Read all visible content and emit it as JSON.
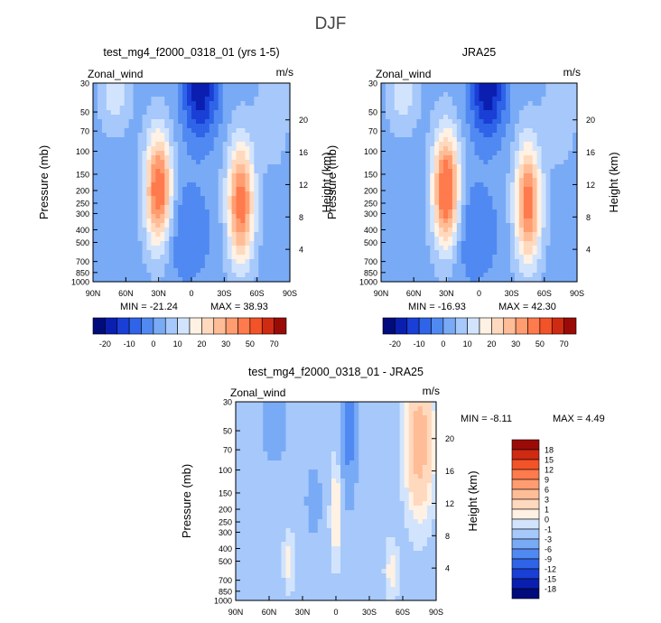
{
  "figure_title": "DJF",
  "chart_data": [
    {
      "type": "heatmap",
      "title": "test_mg4_f2000_0318_01 (yrs 1-5)",
      "variable_label": "Zonal_wind",
      "units": "m/s",
      "ylabel": "Pressure (mb)",
      "y2label": "Height (km)",
      "xticks": [
        "90N",
        "60N",
        "30N",
        "0",
        "30S",
        "60S",
        "90S"
      ],
      "yticks": [
        "30",
        "50",
        "70",
        "100",
        "150",
        "200",
        "250",
        "300",
        "400",
        "500",
        "700",
        "850",
        "1000"
      ],
      "y2ticks": [
        "20",
        "16",
        "12",
        "8",
        "4"
      ],
      "min_label": "MIN = -21.24",
      "max_label": "MAX = 38.93",
      "colorbar": {
        "levels": [
          "-20",
          "-10",
          "0",
          "10",
          "20",
          "30",
          "50",
          "70"
        ],
        "colors": [
          "#000b7c",
          "#0a1fb0",
          "#1a3fd6",
          "#2f64e8",
          "#5089f1",
          "#79aaf6",
          "#a6c8fa",
          "#d2e4fd",
          "#fff1e3",
          "#ffd9be",
          "#ffbd97",
          "#ff9c70",
          "#ff7a4c",
          "#f35328",
          "#cf2a12",
          "#9a0b08"
        ]
      },
      "fields": {
        "jet_nh": {
          "lat": 30,
          "p": 200,
          "max": 38.9
        },
        "jet_sh": {
          "lat": -45,
          "p": 250,
          "max": 36
        },
        "min_value": -21.24,
        "max_value": 38.93
      }
    },
    {
      "type": "heatmap",
      "title": "JRA25",
      "variable_label": "Zonal_wind",
      "units": "m/s",
      "ylabel": "Pressure (mb)",
      "y2label": "Height (km)",
      "xticks": [
        "90N",
        "60N",
        "30N",
        "0",
        "30S",
        "60S",
        "90S"
      ],
      "yticks": [
        "30",
        "50",
        "70",
        "100",
        "150",
        "200",
        "250",
        "300",
        "400",
        "500",
        "700",
        "850",
        "1000"
      ],
      "y2ticks": [
        "20",
        "16",
        "12",
        "8",
        "4"
      ],
      "min_label": "MIN = -16.93",
      "max_label": "MAX = 42.30",
      "colorbar": {
        "levels": [
          "-20",
          "-10",
          "0",
          "10",
          "20",
          "30",
          "50",
          "70"
        ],
        "colors": [
          "#000b7c",
          "#0a1fb0",
          "#1a3fd6",
          "#2f64e8",
          "#5089f1",
          "#79aaf6",
          "#a6c8fa",
          "#d2e4fd",
          "#fff1e3",
          "#ffd9be",
          "#ffbd97",
          "#ff9c70",
          "#ff7a4c",
          "#f35328",
          "#cf2a12",
          "#9a0b08"
        ]
      },
      "fields": {
        "jet_nh": {
          "lat": 30,
          "p": 200,
          "max": 42.3
        },
        "jet_sh": {
          "lat": -45,
          "p": 250,
          "max": 35
        },
        "min_value": -16.93,
        "max_value": 42.3
      }
    },
    {
      "type": "heatmap",
      "title": "test_mg4_f2000_0318_01 - JRA25",
      "variable_label": "Zonal_wind",
      "units": "m/s",
      "ylabel": "Pressure (mb)",
      "y2label": "Height (km)",
      "xticks": [
        "90N",
        "60N",
        "30N",
        "0",
        "30S",
        "60S",
        "90S"
      ],
      "yticks": [
        "30",
        "50",
        "70",
        "100",
        "150",
        "200",
        "250",
        "300",
        "400",
        "500",
        "700",
        "850",
        "1000"
      ],
      "y2ticks": [
        "20",
        "16",
        "12",
        "8",
        "4"
      ],
      "min_label": "MIN =   -8.11",
      "max_label": "MAX =    4.49",
      "colorbar": {
        "levels": [
          "18",
          "15",
          "12",
          "9",
          "6",
          "3",
          "1",
          "0",
          "-1",
          "-3",
          "-6",
          "-9",
          "-12",
          "-15",
          "-18"
        ],
        "colors": [
          "#9a0b08",
          "#cf2a12",
          "#f35328",
          "#ff7a4c",
          "#ff9c70",
          "#ffbd97",
          "#ffd9be",
          "#fff1e3",
          "#d2e4fd",
          "#a6c8fa",
          "#79aaf6",
          "#5089f1",
          "#2f64e8",
          "#1a3fd6",
          "#0a1fb0",
          "#000b7c"
        ]
      },
      "fields": {
        "min_value": -8.11,
        "max_value": 4.49
      }
    }
  ]
}
